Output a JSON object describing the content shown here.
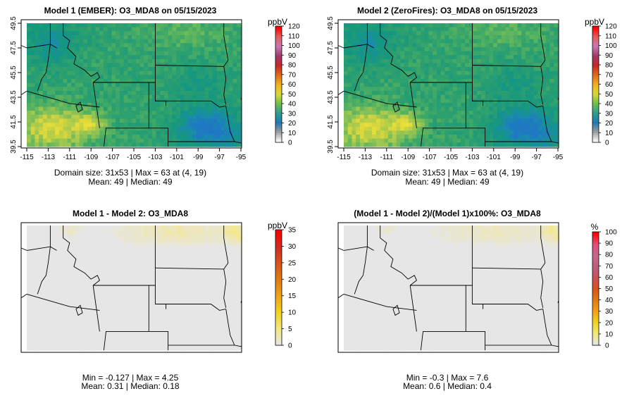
{
  "panels": [
    {
      "id": "model1",
      "title": "Model 1 (EMBER): O3_MDA8 on 05/15/2023",
      "field": "ember",
      "has_axes": true,
      "stats": [
        "Domain size: 31x53 | Max = 63 at (4, 19)",
        "Mean: 49 |  Median: 49"
      ],
      "colorbar": {
        "unit": "ppbV",
        "ticks": [
          "0",
          "10",
          "20",
          "30",
          "40",
          "50",
          "60",
          "70",
          "80",
          "90",
          "100",
          "110",
          "120"
        ],
        "colors": [
          "#ffffff",
          "#9e9e9e",
          "#1f78b4",
          "#2e9e8f",
          "#6fbf4a",
          "#d9d93a",
          "#f2b21b",
          "#e06a1a",
          "#c62828",
          "#a1386a",
          "#c879b4",
          "#e45d5d",
          "#ff0000"
        ]
      }
    },
    {
      "id": "model2",
      "title": "Model 2 (ZeroFires): O3_MDA8 on 05/15/2023",
      "field": "ember",
      "has_axes": true,
      "stats": [
        "Domain size: 31x53 | Max = 63 at (4, 19)",
        "Mean: 49 |  Median: 49"
      ],
      "colorbar": {
        "unit": "ppbV",
        "ticks": [
          "0",
          "10",
          "20",
          "30",
          "40",
          "50",
          "60",
          "70",
          "80",
          "90",
          "100",
          "110",
          "120"
        ],
        "colors": [
          "#ffffff",
          "#9e9e9e",
          "#1f78b4",
          "#2e9e8f",
          "#6fbf4a",
          "#d9d93a",
          "#f2b21b",
          "#e06a1a",
          "#c62828",
          "#a1386a",
          "#c879b4",
          "#e45d5d",
          "#ff0000"
        ]
      }
    },
    {
      "id": "diff",
      "title": "Model 1 - Model 2: O3_MDA8",
      "field": "diff",
      "has_axes": false,
      "stats": [
        "Min = -0.127 | Max = 4.25",
        "Mean: 0.31 |  Median: 0.18"
      ],
      "colorbar": {
        "unit": "ppbV",
        "ticks": [
          "0",
          "5",
          "10",
          "15",
          "20",
          "25",
          "30",
          "35"
        ],
        "colors": [
          "#e6e6e6",
          "#f3e87a",
          "#f0d21e",
          "#f0a318",
          "#e27a12",
          "#d8541a",
          "#d22b22",
          "#ff0000"
        ]
      }
    },
    {
      "id": "pct",
      "title": "(Model 1 - Model 2)/(Model 1)x100%: O3_MDA8",
      "field": "pct",
      "has_axes": false,
      "stats": [
        "Min = -0.3 | Max = 7.6",
        "Mean: 0.6 |  Median: 0.4"
      ],
      "colorbar": {
        "unit": "%",
        "ticks": [
          "0",
          "10",
          "20",
          "30",
          "40",
          "50",
          "60",
          "70",
          "80",
          "90",
          "100"
        ],
        "colors": [
          "#e6e6e6",
          "#f3e87a",
          "#f0d21e",
          "#f0a318",
          "#e27a12",
          "#d8541a",
          "#c8505a",
          "#b8607e",
          "#c46a8a",
          "#e0507a",
          "#ff0000"
        ]
      }
    }
  ],
  "axes": {
    "lon_ticks": [
      "-115",
      "-113",
      "-111",
      "-109",
      "-107",
      "-105",
      "-103",
      "-101",
      "-99",
      "-97",
      "-95"
    ],
    "lat_ticks": [
      "39.5",
      "41.5",
      "43.5",
      "45.5",
      "47.5",
      "49.5"
    ]
  }
}
